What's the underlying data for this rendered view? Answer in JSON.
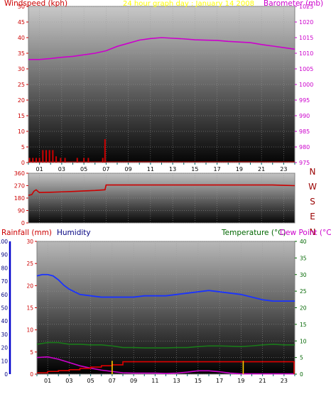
{
  "colors": {
    "windspeed": "#cc0000",
    "barometer": "#cc00cc",
    "title": "#ffff00",
    "winddir": "#cc0000",
    "compass": "#990000",
    "rainfall": "#cc0000",
    "humidity": "#000080",
    "humidity_line": "#1a33ff",
    "temperature": "#006600",
    "temperature_line": "#1a7a1a",
    "dewpoint": "#cc00cc",
    "rain_accum": "#dd0000",
    "rain_marker": "#ffcc00",
    "axis": "#006666"
  },
  "chart_data": [
    {
      "type": "line",
      "title": "24 hour graph day : January 14 2008",
      "x_ticks": [
        "01",
        "03",
        "05",
        "07",
        "09",
        "11",
        "13",
        "15",
        "17",
        "19",
        "21",
        "23"
      ],
      "x_range": [
        0,
        24
      ],
      "left_axis": {
        "label": "Windspeed (kph)",
        "range": [
          0,
          50
        ],
        "ticks": [
          "0",
          "5",
          "10",
          "15",
          "20",
          "25",
          "30",
          "35",
          "40",
          "45",
          "50"
        ]
      },
      "right_axis": {
        "label": "Barometer (mb)",
        "range": [
          975,
          1025
        ],
        "ticks": [
          "975",
          "980",
          "985",
          "990",
          "995",
          "1000",
          "1005",
          "1010",
          "1015",
          "1020",
          "1025"
        ]
      },
      "series": [
        {
          "name": "Windspeed (kph)",
          "kind": "bars",
          "x": [
            0.1,
            0.4,
            0.7,
            1.0,
            1.3,
            1.6,
            1.9,
            2.2,
            2.5,
            2.9,
            3.3,
            4.4,
            5.0,
            5.4,
            6.7,
            6.9
          ],
          "y": [
            1.5,
            1.5,
            1.5,
            1.5,
            4,
            4,
            4,
            4,
            2,
            1.5,
            1.5,
            1.5,
            1.5,
            1.5,
            1.5,
            7.5
          ]
        },
        {
          "name": "Barometer (mb)",
          "kind": "line",
          "x": [
            0,
            1,
            2,
            3,
            4,
            5,
            6,
            7,
            8,
            9,
            10,
            11,
            12,
            13,
            14,
            15,
            16,
            17,
            18,
            19,
            20,
            21,
            22,
            23,
            24
          ],
          "y": [
            1008,
            1008,
            1008.3,
            1008.7,
            1009,
            1009.5,
            1010,
            1010.8,
            1012.2,
            1013.2,
            1014.2,
            1014.7,
            1015,
            1014.8,
            1014.6,
            1014.3,
            1014.2,
            1014.1,
            1013.8,
            1013.6,
            1013.4,
            1012.8,
            1012.3,
            1011.8,
            1011.3
          ]
        }
      ]
    },
    {
      "type": "line",
      "left_axis": {
        "range": [
          0,
          360
        ],
        "ticks": [
          "0",
          "90",
          "180",
          "270",
          "360"
        ],
        "tick_values": [
          0,
          90,
          180,
          270,
          360
        ]
      },
      "right_labels": [
        "N",
        "W",
        "S",
        "E",
        "N"
      ],
      "series": [
        {
          "name": "Wind direction",
          "kind": "line",
          "x": [
            0,
            0.3,
            0.5,
            0.7,
            0.9,
            1.0,
            2,
            3,
            4,
            5,
            6,
            6.9,
            7.0,
            8,
            12,
            16,
            20,
            22,
            23,
            24
          ],
          "y": [
            200,
            205,
            230,
            240,
            225,
            220,
            222,
            225,
            228,
            232,
            235,
            240,
            275,
            275,
            275,
            275,
            275,
            275,
            272,
            270
          ]
        }
      ]
    },
    {
      "type": "line",
      "x_ticks": [
        "01",
        "03",
        "05",
        "07",
        "09",
        "11",
        "13",
        "15",
        "17",
        "19",
        "21",
        "23"
      ],
      "x_range": [
        0,
        24
      ],
      "labels": {
        "rainfall": "Rainfall (mm)",
        "humidity": "Humidity",
        "temperature": "Temperature (°C)",
        "dewpoint": "Dew Point (°C)"
      },
      "humidity_axis": {
        "range": [
          0,
          100
        ],
        "ticks": [
          "0",
          "10",
          "20",
          "30",
          "40",
          "50",
          "60",
          "70",
          "80",
          "90",
          "100"
        ]
      },
      "rainfall_axis": {
        "range": [
          0,
          30
        ],
        "ticks": [
          "0",
          "5",
          "10",
          "15",
          "20",
          "25",
          "30"
        ]
      },
      "temperature_axis": {
        "range": [
          0,
          40
        ],
        "ticks": [
          "0",
          "5",
          "10",
          "15",
          "20",
          "25",
          "30",
          "35",
          "40"
        ]
      },
      "series": [
        {
          "name": "Humidity",
          "axis": "humidity",
          "x": [
            0,
            0.5,
            1,
            1.5,
            2,
            2.5,
            3,
            3.5,
            4,
            5,
            6,
            7,
            8,
            9,
            10,
            11,
            12,
            13,
            14,
            15,
            16,
            17,
            18,
            19,
            20,
            21,
            22,
            23,
            24
          ],
          "y": [
            74,
            75,
            75,
            74,
            71,
            67,
            64,
            62,
            60,
            59,
            58,
            58,
            58,
            58,
            59,
            59,
            59,
            60,
            61,
            62,
            63,
            62,
            61,
            60,
            58,
            56,
            55,
            55,
            55
          ]
        },
        {
          "name": "Temperature (°C)",
          "axis": "temperature",
          "x": [
            0,
            1,
            2,
            3,
            4,
            5,
            6,
            7,
            8,
            9,
            10,
            11,
            12,
            13,
            14,
            15,
            16,
            17,
            18,
            19,
            20,
            21,
            22,
            23,
            24
          ],
          "y": [
            9,
            9.5,
            9.5,
            9,
            9,
            8.8,
            8.8,
            8.5,
            8,
            8,
            7.9,
            7.9,
            7.9,
            8,
            8,
            8.3,
            8.5,
            8.5,
            8.4,
            8.3,
            8.5,
            8.8,
            9,
            8.8,
            8.8
          ]
        },
        {
          "name": "Dew Point (°C)",
          "axis": "temperature",
          "x": [
            0,
            1,
            2,
            3,
            4,
            5,
            6,
            7,
            8,
            9,
            10,
            11,
            12,
            13,
            14,
            15,
            16,
            17,
            18,
            19,
            20,
            21,
            22,
            23,
            24
          ],
          "y": [
            5,
            5.2,
            4.5,
            3.5,
            2.5,
            1.8,
            1.2,
            0.8,
            0.4,
            0.3,
            0.3,
            0.3,
            0.2,
            0.3,
            0.6,
            1,
            1,
            0.7,
            0.3,
            0.1,
            0.1,
            0.1,
            0.1,
            0.1,
            0.1
          ]
        },
        {
          "name": "Rainfall (mm)",
          "axis": "rainfall",
          "kind": "step",
          "x": [
            0,
            1,
            2,
            3,
            4,
            5,
            6,
            7,
            8,
            24
          ],
          "y": [
            0.3,
            0.6,
            0.8,
            1.0,
            1.3,
            1.6,
            1.9,
            2.1,
            2.8,
            2.8
          ]
        },
        {
          "name": "Rain events",
          "axis": "rainfall",
          "kind": "markers",
          "x": [
            7.0,
            19.2
          ],
          "y": [
            3,
            3
          ]
        }
      ]
    }
  ]
}
